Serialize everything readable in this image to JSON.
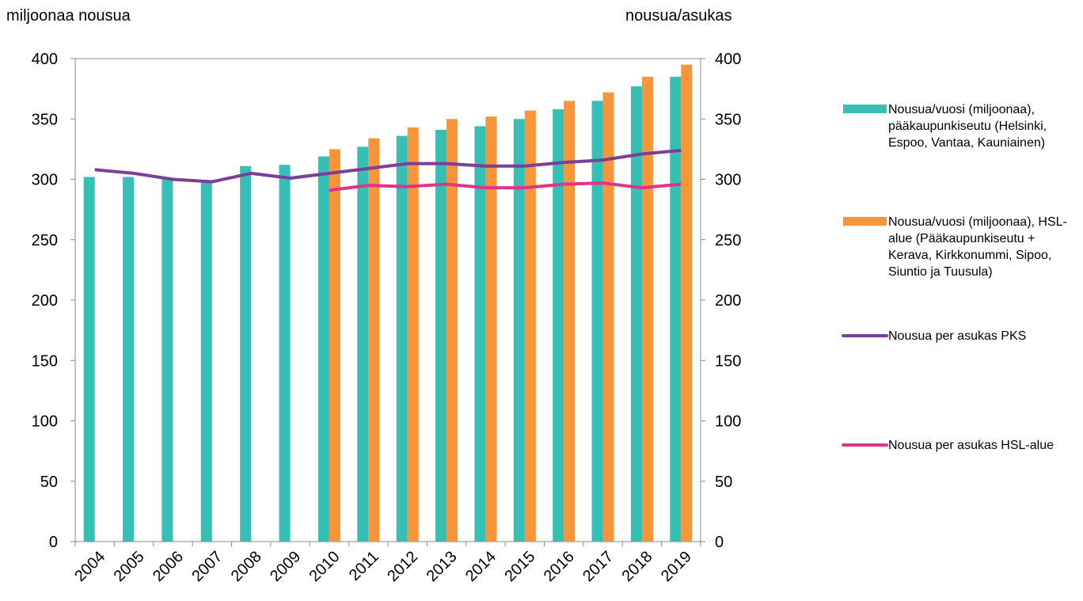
{
  "chart_data": {
    "type": "bar",
    "y_label": "miljoonaa nousua",
    "y2_label": "nousua/asukas",
    "categories": [
      "2004",
      "2005",
      "2006",
      "2007",
      "2008",
      "2009",
      "2010",
      "2011",
      "2012",
      "2013",
      "2014",
      "2015",
      "2016",
      "2017",
      "2018",
      "2019"
    ],
    "series": [
      {
        "name": "Nousua/vuosi (miljoonaa), pääkaupunkiseutu (Helsinki, Espoo, Vantaa, Kauniainen)",
        "type": "bar",
        "color": "#36bfb5",
        "values": [
          302,
          302,
          300,
          299,
          311,
          312,
          319,
          327,
          336,
          341,
          344,
          350,
          358,
          365,
          377,
          385
        ]
      },
      {
        "name": "Nousua/vuosi (miljoonaa), HSL-alue (Pääkaupunkiseutu + Kerava, Kirkkonummi, Sipoo, Siuntio ja Tuusula)",
        "type": "bar",
        "color": "#f7953a",
        "values": [
          null,
          null,
          null,
          null,
          null,
          null,
          325,
          334,
          343,
          350,
          352,
          357,
          365,
          372,
          385,
          395
        ]
      },
      {
        "name": "Nousua per asukas PKS",
        "type": "line",
        "axis": "y2",
        "color": "#7b3f98",
        "values": [
          308,
          305,
          300,
          298,
          305,
          301,
          305,
          309,
          313,
          313,
          311,
          311,
          314,
          316,
          321,
          324
        ]
      },
      {
        "name": "Nousua per asukas HSL-alue",
        "type": "line",
        "axis": "y2",
        "color": "#e0338b",
        "values": [
          null,
          null,
          null,
          null,
          null,
          null,
          291,
          295,
          294,
          296,
          293,
          293,
          296,
          297,
          293,
          296
        ]
      }
    ],
    "ylim": [
      0,
      400
    ],
    "yticks": [
      0,
      50,
      100,
      150,
      200,
      250,
      300,
      350,
      400
    ],
    "y2lim": [
      0,
      400
    ],
    "y2ticks": [
      0,
      50,
      100,
      150,
      200,
      250,
      300,
      350,
      400
    ],
    "grid": false,
    "legend": "right"
  }
}
